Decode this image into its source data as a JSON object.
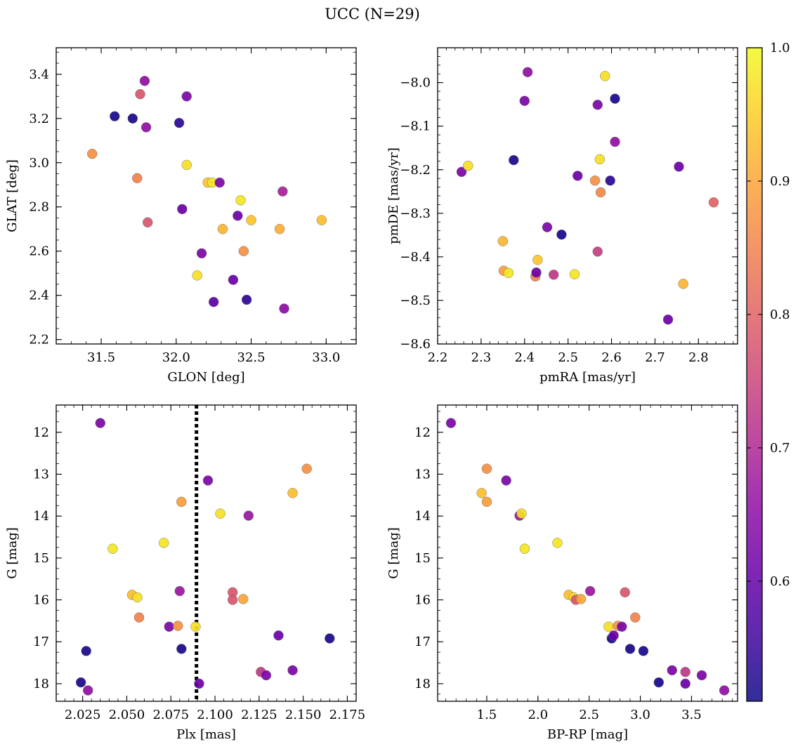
{
  "figure": {
    "title": "UCC (N=29)"
  },
  "colorbar": {
    "vmin": 0.51,
    "vmax": 1.0,
    "ticks": [
      0.6,
      0.7,
      0.8,
      0.9,
      1.0
    ],
    "tick_labels": [
      "0.6",
      "0.7",
      "0.8",
      "0.9",
      "1.0"
    ],
    "colormap": "plasma"
  },
  "chart_data": [
    {
      "type": "scatter",
      "xlabel": "GLON [deg]",
      "ylabel": "GLAT [deg]",
      "xlim": [
        31.2,
        33.2
      ],
      "ylim": [
        2.18,
        3.52
      ],
      "x_ticks": [
        31.5,
        32.0,
        32.5,
        33.0
      ],
      "x_tick_labels": [
        "31.5",
        "32.0",
        "32.5",
        "33.0"
      ],
      "y_ticks": [
        2.2,
        2.4,
        2.6,
        2.8,
        3.0,
        3.2,
        3.4
      ],
      "y_tick_labels": [
        "2.2",
        "2.4",
        "2.6",
        "2.8",
        "3.0",
        "3.2",
        "3.4"
      ],
      "x_minor": 0.1,
      "y_minor": 0.05,
      "y_inverted": false,
      "points": [
        {
          "x": 31.44,
          "y": 3.04,
          "c": 0.87
        },
        {
          "x": 31.59,
          "y": 3.21,
          "c": 0.52
        },
        {
          "x": 31.71,
          "y": 3.2,
          "c": 0.52
        },
        {
          "x": 31.74,
          "y": 2.93,
          "c": 0.85
        },
        {
          "x": 31.76,
          "y": 3.31,
          "c": 0.78
        },
        {
          "x": 31.79,
          "y": 3.37,
          "c": 0.66
        },
        {
          "x": 31.8,
          "y": 3.16,
          "c": 0.66
        },
        {
          "x": 31.81,
          "y": 2.73,
          "c": 0.78
        },
        {
          "x": 32.02,
          "y": 3.18,
          "c": 0.54
        },
        {
          "x": 32.04,
          "y": 2.79,
          "c": 0.61
        },
        {
          "x": 32.07,
          "y": 2.99,
          "c": 0.97
        },
        {
          "x": 32.07,
          "y": 3.3,
          "c": 0.63
        },
        {
          "x": 32.14,
          "y": 2.49,
          "c": 0.97
        },
        {
          "x": 32.17,
          "y": 2.59,
          "c": 0.63
        },
        {
          "x": 32.21,
          "y": 2.91,
          "c": 0.94
        },
        {
          "x": 32.24,
          "y": 2.91,
          "c": 0.98
        },
        {
          "x": 32.25,
          "y": 2.37,
          "c": 0.59
        },
        {
          "x": 32.29,
          "y": 2.91,
          "c": 0.63
        },
        {
          "x": 32.31,
          "y": 2.7,
          "c": 0.92
        },
        {
          "x": 32.38,
          "y": 2.47,
          "c": 0.61
        },
        {
          "x": 32.41,
          "y": 2.76,
          "c": 0.61
        },
        {
          "x": 32.43,
          "y": 2.83,
          "c": 0.98
        },
        {
          "x": 32.45,
          "y": 2.6,
          "c": 0.87
        },
        {
          "x": 32.47,
          "y": 2.38,
          "c": 0.54
        },
        {
          "x": 32.5,
          "y": 2.74,
          "c": 0.94
        },
        {
          "x": 32.69,
          "y": 2.7,
          "c": 0.91
        },
        {
          "x": 32.71,
          "y": 2.87,
          "c": 0.69
        },
        {
          "x": 32.72,
          "y": 2.34,
          "c": 0.65
        },
        {
          "x": 32.97,
          "y": 2.74,
          "c": 0.93
        }
      ]
    },
    {
      "type": "scatter",
      "xlabel": "pmRA [mas/yr]",
      "ylabel": "pmDE [mas/yr]",
      "xlim": [
        2.2,
        2.89
      ],
      "ylim": [
        -8.6,
        -7.92
      ],
      "x_ticks": [
        2.2,
        2.3,
        2.4,
        2.5,
        2.6,
        2.7,
        2.8
      ],
      "x_tick_labels": [
        "2.2",
        "2.3",
        "2.4",
        "2.5",
        "2.6",
        "2.7",
        "2.8"
      ],
      "y_ticks": [
        -8.6,
        -8.5,
        -8.4,
        -8.3,
        -8.2,
        -8.1,
        -8.0
      ],
      "y_tick_labels": [
        "−8.6",
        "−8.5",
        "−8.4",
        "−8.3",
        "−8.2",
        "−8.1",
        "−8.0"
      ],
      "x_minor": 0.02,
      "y_minor": 0.02,
      "y_inverted": false,
      "points": [
        {
          "x": 2.255,
          "y": -8.205,
          "c": 0.63
        },
        {
          "x": 2.27,
          "y": -8.191,
          "c": 0.97
        },
        {
          "x": 2.35,
          "y": -8.364,
          "c": 0.92
        },
        {
          "x": 2.352,
          "y": -8.432,
          "c": 0.89
        },
        {
          "x": 2.363,
          "y": -8.437,
          "c": 0.98
        },
        {
          "x": 2.375,
          "y": -8.178,
          "c": 0.52
        },
        {
          "x": 2.4,
          "y": -8.042,
          "c": 0.63
        },
        {
          "x": 2.407,
          "y": -7.976,
          "c": 0.66
        },
        {
          "x": 2.425,
          "y": -8.445,
          "c": 0.85
        },
        {
          "x": 2.427,
          "y": -8.436,
          "c": 0.61
        },
        {
          "x": 2.43,
          "y": -8.407,
          "c": 0.94
        },
        {
          "x": 2.452,
          "y": -8.332,
          "c": 0.63
        },
        {
          "x": 2.467,
          "y": -8.441,
          "c": 0.73
        },
        {
          "x": 2.485,
          "y": -8.349,
          "c": 0.52
        },
        {
          "x": 2.515,
          "y": -8.44,
          "c": 0.98
        },
        {
          "x": 2.522,
          "y": -8.214,
          "c": 0.61
        },
        {
          "x": 2.562,
          "y": -8.225,
          "c": 0.87
        },
        {
          "x": 2.568,
          "y": -8.051,
          "c": 0.63
        },
        {
          "x": 2.568,
          "y": -8.388,
          "c": 0.74
        },
        {
          "x": 2.573,
          "y": -8.176,
          "c": 0.97
        },
        {
          "x": 2.575,
          "y": -8.252,
          "c": 0.86
        },
        {
          "x": 2.585,
          "y": -7.985,
          "c": 0.97
        },
        {
          "x": 2.597,
          "y": -8.225,
          "c": 0.54
        },
        {
          "x": 2.608,
          "y": -8.037,
          "c": 0.52
        },
        {
          "x": 2.608,
          "y": -8.136,
          "c": 0.66
        },
        {
          "x": 2.73,
          "y": -8.544,
          "c": 0.61
        },
        {
          "x": 2.755,
          "y": -8.193,
          "c": 0.61
        },
        {
          "x": 2.765,
          "y": -8.462,
          "c": 0.92
        },
        {
          "x": 2.835,
          "y": -8.275,
          "c": 0.8
        }
      ]
    },
    {
      "type": "scatter",
      "xlabel": "Plx [mas]",
      "ylabel": "G [mag]",
      "xlim": [
        2.01,
        2.18
      ],
      "ylim": [
        18.42,
        11.35
      ],
      "x_ticks": [
        2.025,
        2.05,
        2.075,
        2.1,
        2.125,
        2.15,
        2.175
      ],
      "x_tick_labels": [
        "2.025",
        "2.050",
        "2.075",
        "2.100",
        "2.125",
        "2.150",
        "2.175"
      ],
      "y_ticks": [
        12,
        13,
        14,
        15,
        16,
        17,
        18
      ],
      "y_tick_labels": [
        "12",
        "13",
        "14",
        "15",
        "16",
        "17",
        "18"
      ],
      "x_minor": 0.005,
      "y_minor": 0.25,
      "y_inverted": true,
      "vline": 2.0895,
      "points": [
        {
          "x": 2.024,
          "y": 17.97,
          "c": 0.52
        },
        {
          "x": 2.027,
          "y": 17.22,
          "c": 0.52
        },
        {
          "x": 2.028,
          "y": 18.16,
          "c": 0.66
        },
        {
          "x": 2.035,
          "y": 11.78,
          "c": 0.63
        },
        {
          "x": 2.042,
          "y": 14.78,
          "c": 0.98
        },
        {
          "x": 2.053,
          "y": 15.88,
          "c": 0.93
        },
        {
          "x": 2.056,
          "y": 15.94,
          "c": 0.97
        },
        {
          "x": 2.057,
          "y": 16.42,
          "c": 0.85
        },
        {
          "x": 2.071,
          "y": 14.64,
          "c": 0.98
        },
        {
          "x": 2.074,
          "y": 16.64,
          "c": 0.63
        },
        {
          "x": 2.079,
          "y": 16.62,
          "c": 0.87
        },
        {
          "x": 2.08,
          "y": 15.79,
          "c": 0.67
        },
        {
          "x": 2.081,
          "y": 17.17,
          "c": 0.52
        },
        {
          "x": 2.081,
          "y": 13.66,
          "c": 0.89
        },
        {
          "x": 2.089,
          "y": 16.64,
          "c": 0.97
        },
        {
          "x": 2.091,
          "y": 18.0,
          "c": 0.61
        },
        {
          "x": 2.096,
          "y": 13.15,
          "c": 0.63
        },
        {
          "x": 2.103,
          "y": 13.94,
          "c": 0.97
        },
        {
          "x": 2.11,
          "y": 15.82,
          "c": 0.78
        },
        {
          "x": 2.11,
          "y": 16.0,
          "c": 0.78
        },
        {
          "x": 2.116,
          "y": 15.98,
          "c": 0.9
        },
        {
          "x": 2.119,
          "y": 13.99,
          "c": 0.67
        },
        {
          "x": 2.126,
          "y": 17.72,
          "c": 0.73
        },
        {
          "x": 2.129,
          "y": 17.8,
          "c": 0.63
        },
        {
          "x": 2.136,
          "y": 16.85,
          "c": 0.61
        },
        {
          "x": 2.144,
          "y": 17.68,
          "c": 0.63
        },
        {
          "x": 2.144,
          "y": 13.45,
          "c": 0.93
        },
        {
          "x": 2.152,
          "y": 12.87,
          "c": 0.87
        },
        {
          "x": 2.165,
          "y": 16.92,
          "c": 0.52
        }
      ]
    },
    {
      "type": "scatter",
      "xlabel": "BP-RP [mag]",
      "ylabel": "G [mag]",
      "xlim": [
        1.02,
        3.95
      ],
      "ylim": [
        18.42,
        11.35
      ],
      "x_ticks": [
        1.5,
        2.0,
        2.5,
        3.0,
        3.5
      ],
      "x_tick_labels": [
        "1.5",
        "2.0",
        "2.5",
        "3.0",
        "3.5"
      ],
      "y_ticks": [
        12,
        13,
        14,
        15,
        16,
        17,
        18
      ],
      "y_tick_labels": [
        "12",
        "13",
        "14",
        "15",
        "16",
        "17",
        "18"
      ],
      "x_minor": 0.1,
      "y_minor": 0.25,
      "y_inverted": true,
      "points": [
        {
          "x": 1.15,
          "y": 11.78,
          "c": 0.63
        },
        {
          "x": 1.45,
          "y": 13.45,
          "c": 0.93
        },
        {
          "x": 1.5,
          "y": 12.87,
          "c": 0.87
        },
        {
          "x": 1.5,
          "y": 13.66,
          "c": 0.89
        },
        {
          "x": 1.69,
          "y": 13.15,
          "c": 0.63
        },
        {
          "x": 1.82,
          "y": 13.99,
          "c": 0.67
        },
        {
          "x": 1.84,
          "y": 13.94,
          "c": 0.97
        },
        {
          "x": 1.87,
          "y": 14.78,
          "c": 0.98
        },
        {
          "x": 2.19,
          "y": 14.64,
          "c": 0.98
        },
        {
          "x": 2.3,
          "y": 15.88,
          "c": 0.93
        },
        {
          "x": 2.35,
          "y": 15.94,
          "c": 0.97
        },
        {
          "x": 2.37,
          "y": 16.0,
          "c": 0.78
        },
        {
          "x": 2.42,
          "y": 15.98,
          "c": 0.9
        },
        {
          "x": 2.51,
          "y": 15.79,
          "c": 0.67
        },
        {
          "x": 2.69,
          "y": 16.64,
          "c": 0.97
        },
        {
          "x": 2.72,
          "y": 16.92,
          "c": 0.52
        },
        {
          "x": 2.74,
          "y": 16.85,
          "c": 0.61
        },
        {
          "x": 2.78,
          "y": 16.62,
          "c": 0.87
        },
        {
          "x": 2.82,
          "y": 16.64,
          "c": 0.63
        },
        {
          "x": 2.85,
          "y": 15.82,
          "c": 0.78
        },
        {
          "x": 2.9,
          "y": 17.17,
          "c": 0.52
        },
        {
          "x": 2.95,
          "y": 16.42,
          "c": 0.85
        },
        {
          "x": 3.03,
          "y": 17.22,
          "c": 0.52
        },
        {
          "x": 3.18,
          "y": 17.97,
          "c": 0.52
        },
        {
          "x": 3.31,
          "y": 17.68,
          "c": 0.63
        },
        {
          "x": 3.44,
          "y": 17.72,
          "c": 0.73
        },
        {
          "x": 3.44,
          "y": 18.0,
          "c": 0.61
        },
        {
          "x": 3.6,
          "y": 17.8,
          "c": 0.63
        },
        {
          "x": 3.82,
          "y": 18.16,
          "c": 0.66
        }
      ]
    }
  ]
}
